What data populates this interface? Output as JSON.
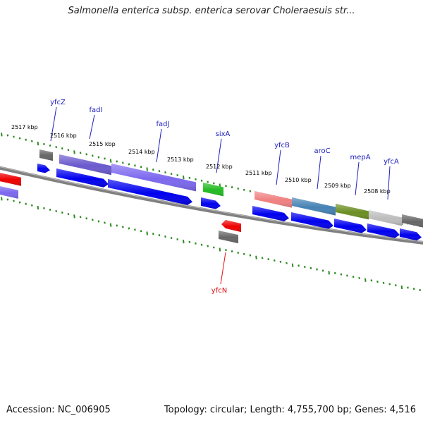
{
  "title": "Salmonella enterica subsp. enterica serovar Choleraesuis str...",
  "accession": "Accession: NC_006905",
  "summary": "Topology: circular; Length: 4,755,700 bp; Genes: 4,516",
  "colors": {
    "background": "#ffffff",
    "backbone": "#808080",
    "ticks": "#2e8b22",
    "forward_gene_label": "#1f1fbf",
    "reverse_gene_label": "#e01010",
    "cds": "#0000ee",
    "scale_label": "#000000"
  },
  "scale_labels": [
    {
      "id": "kbp-2517",
      "text": "2517 kbp"
    },
    {
      "id": "kbp-2516",
      "text": "2516 kbp"
    },
    {
      "id": "kbp-2515",
      "text": "2515 kbp"
    },
    {
      "id": "kbp-2514",
      "text": "2514 kbp"
    },
    {
      "id": "kbp-2513",
      "text": "2513 kbp"
    },
    {
      "id": "kbp-2512",
      "text": "2512 kbp"
    },
    {
      "id": "kbp-2511",
      "text": "2511 kbp"
    },
    {
      "id": "kbp-2510",
      "text": "2510 kbp"
    },
    {
      "id": "kbp-2509",
      "text": "2509 kbp"
    },
    {
      "id": "kbp-2508",
      "text": "2508 kbp"
    }
  ],
  "gene_labels": [
    {
      "id": "yfcZ",
      "text": "yfcZ",
      "strand": "forward"
    },
    {
      "id": "fadI",
      "text": "fadI",
      "strand": "forward"
    },
    {
      "id": "fadJ",
      "text": "fadJ",
      "strand": "forward"
    },
    {
      "id": "sixA",
      "text": "sixA",
      "strand": "forward"
    },
    {
      "id": "yfcB",
      "text": "yfcB",
      "strand": "forward"
    },
    {
      "id": "aroC",
      "text": "aroC",
      "strand": "forward"
    },
    {
      "id": "mepA",
      "text": "mepA",
      "strand": "forward"
    },
    {
      "id": "yfcA",
      "text": "yfcA",
      "strand": "forward"
    },
    {
      "id": "yfcN",
      "text": "yfcN",
      "strand": "reverse"
    }
  ],
  "feature_blocks": [
    {
      "id": "left-edge-gene",
      "color": "#ee0000"
    },
    {
      "id": "left-edge-cog",
      "color": "#7b68ee"
    },
    {
      "id": "yfcZ-cog",
      "color": "#666666"
    },
    {
      "id": "fadI-cog",
      "color": "#6a5acd"
    },
    {
      "id": "fadJ-cog",
      "color": "#7b68ee"
    },
    {
      "id": "sixA-cog",
      "color": "#22bb22"
    },
    {
      "id": "yfcB-cog",
      "color": "#f08080"
    },
    {
      "id": "aroC-cog",
      "color": "#4682b4"
    },
    {
      "id": "mepA-cog",
      "color": "#6b8e23"
    },
    {
      "id": "yfcA-cog",
      "color": "#bdbdbd"
    },
    {
      "id": "right-edge-cog",
      "color": "#666666"
    },
    {
      "id": "yfcN-gene",
      "color": "#ee0000"
    },
    {
      "id": "yfcN-cog",
      "color": "#666666"
    }
  ],
  "cds_arrows": [
    {
      "id": "yfcZ-cds"
    },
    {
      "id": "fadI-cds"
    },
    {
      "id": "fadJ-cds"
    },
    {
      "id": "sixA-cds"
    },
    {
      "id": "yfcB-cds"
    },
    {
      "id": "aroC-cds"
    },
    {
      "id": "mepA-cds"
    },
    {
      "id": "yfcA-cds"
    },
    {
      "id": "right-edge-cds"
    }
  ]
}
